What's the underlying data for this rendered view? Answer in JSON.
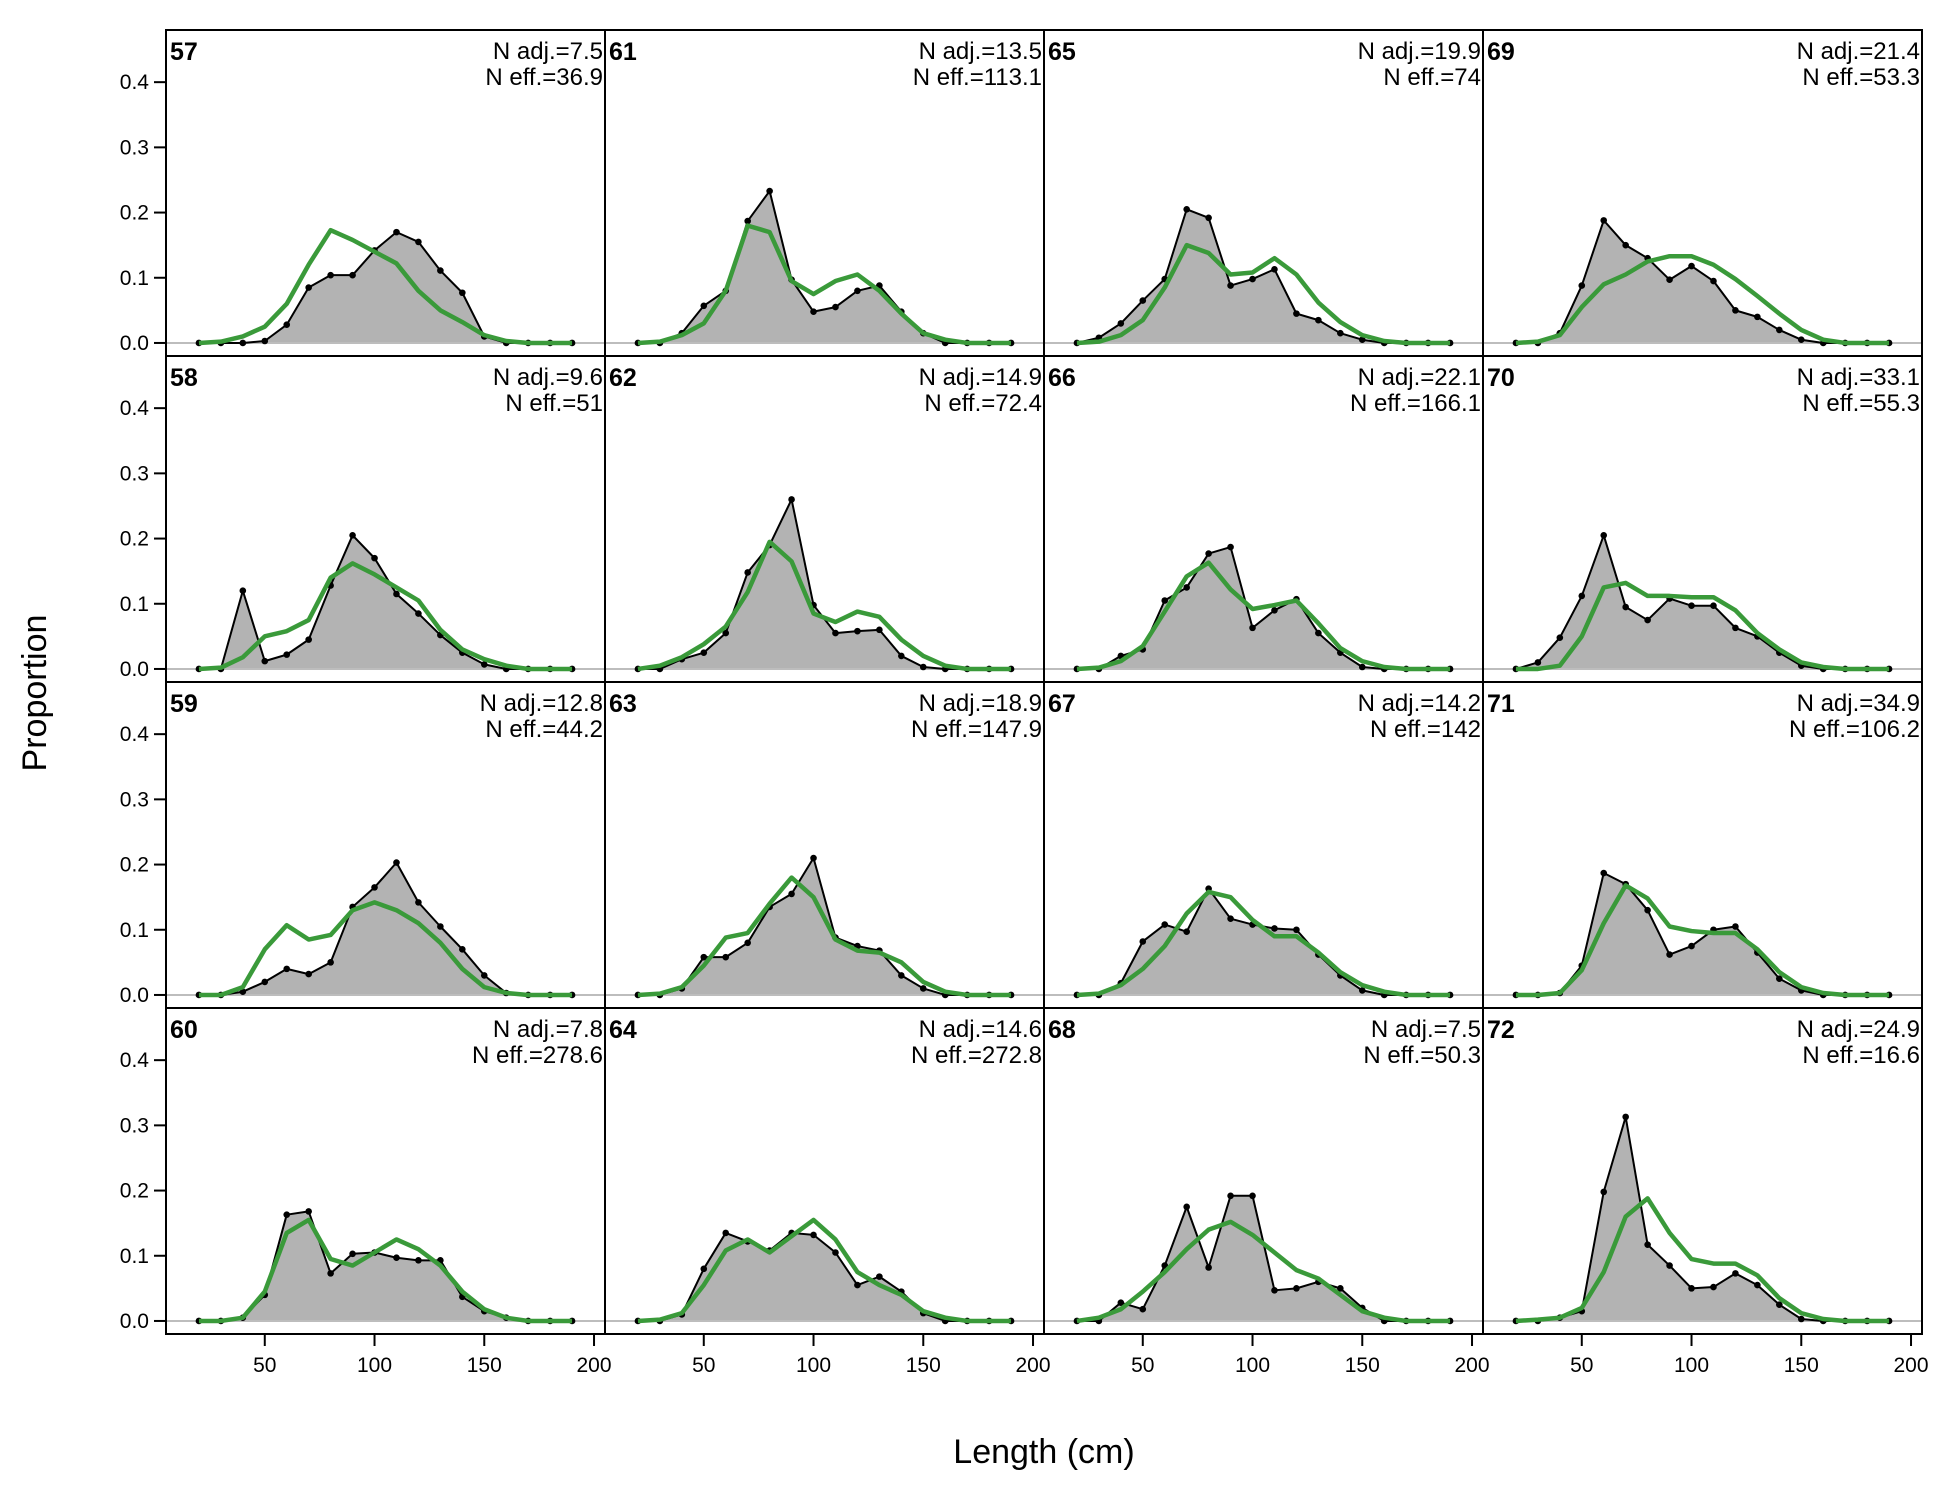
{
  "chart_data": {
    "type": "area",
    "xlabel": "Length (cm)",
    "ylabel": "Proportion",
    "xlim": [
      5,
      205
    ],
    "ylim": [
      -0.02,
      0.48
    ],
    "x_ticks": [
      50,
      100,
      150,
      200
    ],
    "y_ticks": [
      0.0,
      0.1,
      0.2,
      0.3,
      0.4
    ],
    "x_tick_labels": [
      "50",
      "100",
      "150",
      "200"
    ],
    "y_tick_labels": [
      "0.0",
      "0.1",
      "0.2",
      "0.3",
      "0.4"
    ],
    "bins": [
      20,
      30,
      40,
      50,
      60,
      70,
      80,
      90,
      100,
      110,
      120,
      130,
      140,
      150,
      160,
      170,
      180,
      190
    ],
    "grid": false,
    "layout": {
      "rows": 4,
      "cols": 4,
      "order": "column-major"
    },
    "colors": {
      "observed_fill": "#b3b3b3",
      "observed_line": "#000000",
      "expected_line": "#3a9a3a",
      "zero_line": "#bdbdbd"
    },
    "panels": [
      {
        "label": "57",
        "n_adj": "N adj.=7.5",
        "n_eff": "N eff.=36.9",
        "observed": [
          0,
          0,
          0,
          0.003,
          0.028,
          0.085,
          0.104,
          0.104,
          0.142,
          0.17,
          0.155,
          0.111,
          0.077,
          0.01,
          0,
          0,
          0,
          0
        ],
        "expected": [
          0,
          0.002,
          0.01,
          0.025,
          0.06,
          0.12,
          0.173,
          0.158,
          0.14,
          0.122,
          0.08,
          0.05,
          0.032,
          0.012,
          0.003,
          0,
          0,
          0
        ]
      },
      {
        "label": "58",
        "n_adj": "N adj.=9.6",
        "n_eff": "N eff.=51",
        "observed": [
          0,
          0,
          0.12,
          0.012,
          0.022,
          0.045,
          0.128,
          0.205,
          0.17,
          0.115,
          0.085,
          0.052,
          0.025,
          0.007,
          0,
          0,
          0,
          0
        ],
        "expected": [
          0,
          0.002,
          0.018,
          0.05,
          0.058,
          0.075,
          0.14,
          0.162,
          0.145,
          0.125,
          0.105,
          0.06,
          0.03,
          0.015,
          0.005,
          0,
          0,
          0
        ]
      },
      {
        "label": "59",
        "n_adj": "N adj.=12.8",
        "n_eff": "N eff.=44.2",
        "observed": [
          0,
          0,
          0.005,
          0.02,
          0.04,
          0.032,
          0.05,
          0.135,
          0.165,
          0.203,
          0.142,
          0.105,
          0.07,
          0.03,
          0.003,
          0,
          0,
          0
        ],
        "expected": [
          0,
          0,
          0.012,
          0.07,
          0.107,
          0.085,
          0.092,
          0.13,
          0.142,
          0.13,
          0.11,
          0.08,
          0.04,
          0.012,
          0.003,
          0,
          0,
          0
        ]
      },
      {
        "label": "60",
        "n_adj": "N adj.=7.8",
        "n_eff": "N eff.=278.6",
        "observed": [
          0,
          0,
          0.005,
          0.04,
          0.163,
          0.168,
          0.073,
          0.103,
          0.105,
          0.097,
          0.093,
          0.093,
          0.037,
          0.015,
          0.005,
          0,
          0,
          0
        ],
        "expected": [
          0,
          0,
          0.005,
          0.045,
          0.135,
          0.155,
          0.095,
          0.085,
          0.105,
          0.125,
          0.11,
          0.085,
          0.045,
          0.018,
          0.005,
          0,
          0,
          0
        ]
      },
      {
        "label": "61",
        "n_adj": "N adj.=13.5",
        "n_eff": "N eff.=113.1",
        "observed": [
          0,
          0,
          0.015,
          0.057,
          0.08,
          0.187,
          0.233,
          0.097,
          0.048,
          0.055,
          0.08,
          0.088,
          0.048,
          0.015,
          0,
          0,
          0,
          0
        ],
        "expected": [
          0,
          0.002,
          0.012,
          0.03,
          0.08,
          0.18,
          0.17,
          0.095,
          0.075,
          0.095,
          0.105,
          0.08,
          0.045,
          0.015,
          0.005,
          0,
          0,
          0
        ]
      },
      {
        "label": "62",
        "n_adj": "N adj.=14.9",
        "n_eff": "N eff.=72.4",
        "observed": [
          0,
          0,
          0.015,
          0.025,
          0.055,
          0.148,
          0.19,
          0.26,
          0.098,
          0.055,
          0.058,
          0.06,
          0.02,
          0.003,
          0,
          0,
          0,
          0
        ],
        "expected": [
          0,
          0.005,
          0.018,
          0.038,
          0.065,
          0.118,
          0.195,
          0.165,
          0.085,
          0.072,
          0.088,
          0.08,
          0.045,
          0.02,
          0.005,
          0,
          0,
          0
        ]
      },
      {
        "label": "63",
        "n_adj": "N adj.=18.9",
        "n_eff": "N eff.=147.9",
        "observed": [
          0,
          0,
          0.01,
          0.058,
          0.058,
          0.08,
          0.135,
          0.155,
          0.21,
          0.088,
          0.075,
          0.068,
          0.03,
          0.01,
          0,
          0,
          0,
          0
        ],
        "expected": [
          0,
          0.002,
          0.012,
          0.045,
          0.088,
          0.095,
          0.14,
          0.18,
          0.15,
          0.085,
          0.068,
          0.065,
          0.05,
          0.02,
          0.005,
          0,
          0,
          0
        ]
      },
      {
        "label": "64",
        "n_adj": "N adj.=14.6",
        "n_eff": "N eff.=272.8",
        "observed": [
          0,
          0,
          0.01,
          0.08,
          0.135,
          0.122,
          0.108,
          0.135,
          0.132,
          0.105,
          0.055,
          0.068,
          0.045,
          0.012,
          0,
          0,
          0,
          0
        ],
        "expected": [
          0,
          0.002,
          0.012,
          0.055,
          0.108,
          0.125,
          0.105,
          0.13,
          0.155,
          0.125,
          0.075,
          0.055,
          0.04,
          0.015,
          0.005,
          0,
          0,
          0
        ]
      },
      {
        "label": "65",
        "n_adj": "N adj.=19.9",
        "n_eff": "N eff.=74",
        "observed": [
          0,
          0.008,
          0.03,
          0.065,
          0.098,
          0.205,
          0.192,
          0.088,
          0.098,
          0.113,
          0.045,
          0.035,
          0.015,
          0.005,
          0,
          0,
          0,
          0
        ],
        "expected": [
          0,
          0.002,
          0.012,
          0.035,
          0.085,
          0.15,
          0.138,
          0.105,
          0.108,
          0.13,
          0.105,
          0.062,
          0.032,
          0.012,
          0.003,
          0,
          0,
          0
        ]
      },
      {
        "label": "66",
        "n_adj": "N adj.=22.1",
        "n_eff": "N eff.=166.1",
        "observed": [
          0,
          0,
          0.02,
          0.03,
          0.105,
          0.125,
          0.177,
          0.187,
          0.063,
          0.09,
          0.107,
          0.055,
          0.025,
          0.003,
          0,
          0,
          0,
          0
        ],
        "expected": [
          0,
          0.002,
          0.012,
          0.035,
          0.088,
          0.142,
          0.163,
          0.122,
          0.092,
          0.098,
          0.105,
          0.07,
          0.032,
          0.012,
          0.003,
          0,
          0,
          0
        ]
      },
      {
        "label": "67",
        "n_adj": "N adj.=14.2",
        "n_eff": "N eff.=142",
        "observed": [
          0,
          0,
          0.018,
          0.082,
          0.108,
          0.097,
          0.163,
          0.117,
          0.108,
          0.102,
          0.1,
          0.062,
          0.03,
          0.007,
          0,
          0,
          0,
          0
        ],
        "expected": [
          0,
          0.002,
          0.015,
          0.04,
          0.075,
          0.125,
          0.158,
          0.15,
          0.115,
          0.09,
          0.09,
          0.065,
          0.035,
          0.015,
          0.005,
          0,
          0,
          0
        ]
      },
      {
        "label": "68",
        "n_adj": "N adj.=7.5",
        "n_eff": "N eff.=50.3",
        "observed": [
          0,
          0,
          0.028,
          0.018,
          0.085,
          0.175,
          0.082,
          0.192,
          0.192,
          0.047,
          0.05,
          0.06,
          0.05,
          0.02,
          0,
          0,
          0,
          0
        ],
        "expected": [
          0,
          0.005,
          0.018,
          0.045,
          0.075,
          0.11,
          0.14,
          0.152,
          0.132,
          0.105,
          0.078,
          0.065,
          0.04,
          0.015,
          0.005,
          0,
          0,
          0
        ]
      },
      {
        "label": "69",
        "n_adj": "N adj.=21.4",
        "n_eff": "N eff.=53.3",
        "observed": [
          0,
          0,
          0.015,
          0.088,
          0.188,
          0.15,
          0.13,
          0.097,
          0.118,
          0.095,
          0.05,
          0.04,
          0.02,
          0.005,
          0,
          0,
          0,
          0
        ],
        "expected": [
          0,
          0.002,
          0.012,
          0.055,
          0.09,
          0.105,
          0.125,
          0.133,
          0.133,
          0.12,
          0.098,
          0.072,
          0.045,
          0.02,
          0.005,
          0,
          0,
          0
        ]
      },
      {
        "label": "70",
        "n_adj": "N adj.=33.1",
        "n_eff": "N eff.=55.3",
        "observed": [
          0,
          0.01,
          0.048,
          0.112,
          0.205,
          0.095,
          0.075,
          0.108,
          0.097,
          0.097,
          0.063,
          0.05,
          0.025,
          0.005,
          0,
          0,
          0,
          0
        ],
        "expected": [
          0,
          0,
          0.005,
          0.05,
          0.125,
          0.132,
          0.112,
          0.112,
          0.11,
          0.11,
          0.09,
          0.055,
          0.03,
          0.01,
          0.003,
          0,
          0,
          0
        ]
      },
      {
        "label": "71",
        "n_adj": "N adj.=34.9",
        "n_eff": "N eff.=106.2",
        "observed": [
          0,
          0,
          0.003,
          0.045,
          0.187,
          0.17,
          0.13,
          0.062,
          0.075,
          0.1,
          0.105,
          0.065,
          0.025,
          0.007,
          0,
          0,
          0,
          0
        ],
        "expected": [
          0,
          0,
          0.003,
          0.038,
          0.11,
          0.168,
          0.148,
          0.105,
          0.098,
          0.095,
          0.095,
          0.07,
          0.035,
          0.012,
          0.003,
          0,
          0,
          0
        ]
      },
      {
        "label": "72",
        "n_adj": "N adj.=24.9",
        "n_eff": "N eff.=16.6",
        "observed": [
          0,
          0,
          0.005,
          0.015,
          0.198,
          0.313,
          0.117,
          0.085,
          0.05,
          0.052,
          0.073,
          0.055,
          0.025,
          0.003,
          0,
          0,
          0,
          0
        ],
        "expected": [
          0,
          0.002,
          0.005,
          0.02,
          0.075,
          0.16,
          0.188,
          0.135,
          0.095,
          0.088,
          0.088,
          0.07,
          0.035,
          0.012,
          0.003,
          0,
          0,
          0
        ]
      }
    ]
  }
}
